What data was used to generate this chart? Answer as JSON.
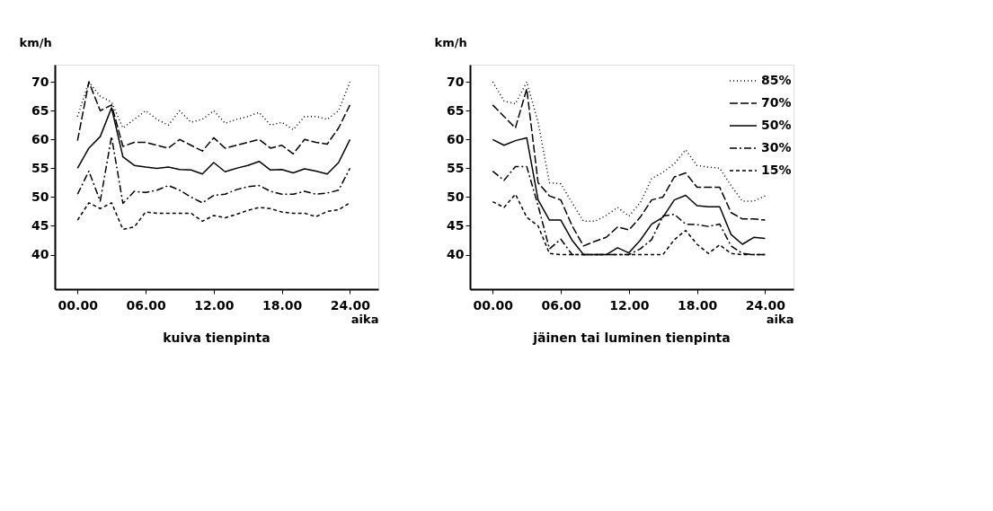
{
  "chart_data": [
    {
      "type": "line",
      "title": "kuiva tienpinta",
      "xlabel": "aika",
      "ylabel": "km/h",
      "x": [
        0,
        1,
        2,
        3,
        4,
        5,
        6,
        7,
        8,
        9,
        10,
        11,
        12,
        13,
        14,
        15,
        16,
        17,
        18,
        19,
        20,
        21,
        22,
        23,
        24
      ],
      "xlim": [
        -2,
        26.5
      ],
      "ylim": [
        34,
        73
      ],
      "xticks": [
        {
          "value": 0,
          "label": "00.00"
        },
        {
          "value": 6,
          "label": "06.00"
        },
        {
          "value": 12,
          "label": "12.00"
        },
        {
          "value": 18,
          "label": "18.00"
        },
        {
          "value": 24,
          "label": "24.00"
        }
      ],
      "yticks": [
        40,
        45,
        50,
        55,
        60,
        65,
        70
      ],
      "grid": false,
      "legend": false,
      "marker": "none",
      "series": [
        {
          "color": "#000000",
          "line_style": "dotted",
          "values": [
            64,
            70,
            67.5,
            66.5,
            62,
            63.5,
            65,
            63.5,
            62.5,
            65,
            63,
            63.5,
            65,
            62.8,
            63.5,
            64,
            64.7,
            62.5,
            63,
            61.7,
            64,
            64,
            63.5,
            65,
            70
          ]
        },
        {
          "color": "#000000",
          "line_style": "longdash",
          "values": [
            59.8,
            70,
            65,
            66,
            58.8,
            59.5,
            59.5,
            59,
            58.5,
            60,
            59,
            58,
            60.3,
            58.5,
            59,
            59.5,
            60,
            58.5,
            59,
            57.5,
            60,
            59.5,
            59.2,
            62,
            66
          ]
        },
        {
          "color": "#000000",
          "line_style": "solid",
          "values": [
            55,
            58.5,
            60.5,
            65.5,
            57,
            55.5,
            55.2,
            55,
            55.2,
            54.8,
            54.7,
            54,
            56,
            54.4,
            55,
            55.5,
            56.2,
            54.7,
            54.8,
            54.2,
            54.9,
            54.5,
            54,
            56,
            60
          ]
        },
        {
          "color": "#000000",
          "line_style": "dashdot",
          "values": [
            50.5,
            54.5,
            49.3,
            60.5,
            48.9,
            51,
            50.8,
            51.2,
            52,
            51.2,
            50,
            49,
            50.3,
            50.5,
            51.3,
            51.8,
            52,
            51,
            50.5,
            50.5,
            51,
            50.5,
            50.7,
            51.2,
            55
          ]
        },
        {
          "color": "#000000",
          "line_style": "dashed",
          "values": [
            46,
            49,
            48,
            49,
            44.4,
            44.8,
            47.4,
            47.2,
            47.2,
            47.2,
            47.2,
            45.8,
            46.8,
            46.4,
            47,
            47.7,
            48.2,
            48,
            47.4,
            47.2,
            47.2,
            46.6,
            47.5,
            47.8,
            49
          ]
        }
      ]
    },
    {
      "type": "line",
      "title": "jäinen tai luminen tienpinta",
      "xlabel": "aika",
      "ylabel": "km/h",
      "x": [
        0,
        1,
        2,
        3,
        4,
        5,
        6,
        7,
        8,
        9,
        10,
        11,
        12,
        13,
        14,
        15,
        16,
        17,
        18,
        19,
        20,
        21,
        22,
        23,
        24
      ],
      "xlim": [
        -2,
        26.5
      ],
      "ylim": [
        34,
        73
      ],
      "xticks": [
        {
          "value": 0,
          "label": "00.00"
        },
        {
          "value": 6,
          "label": "06.00"
        },
        {
          "value": 12,
          "label": "12.00"
        },
        {
          "value": 18,
          "label": "18.00"
        },
        {
          "value": 24,
          "label": "24.00"
        }
      ],
      "yticks": [
        40,
        45,
        50,
        55,
        60,
        65,
        70
      ],
      "grid": false,
      "legend": "top right",
      "marker": "none",
      "series": [
        {
          "name": "85%",
          "color": "#000000",
          "line_style": "dotted",
          "values": [
            70,
            66.7,
            66.2,
            70,
            63,
            52.5,
            52.3,
            49,
            45.8,
            45.8,
            46.8,
            48.2,
            46.7,
            49,
            53.2,
            54.3,
            55.8,
            58.2,
            55.5,
            55.2,
            55,
            52,
            49.3,
            49.3,
            50.2
          ]
        },
        {
          "name": "70%",
          "color": "#000000",
          "line_style": "longdash",
          "values": [
            66,
            64,
            62,
            68.8,
            52.5,
            50.2,
            49.5,
            45,
            41.5,
            42.3,
            43,
            44.8,
            44.3,
            46.5,
            49.5,
            50,
            53.5,
            54.2,
            51.7,
            51.7,
            51.7,
            47.3,
            46.2,
            46.2,
            46
          ]
        },
        {
          "name": "50%",
          "color": "#000000",
          "line_style": "solid",
          "values": [
            60,
            59,
            59.8,
            60.3,
            49.5,
            46,
            46,
            42.5,
            40,
            40,
            40,
            41.2,
            40.3,
            42.5,
            45.3,
            46.5,
            49.5,
            50.3,
            48.5,
            48.3,
            48.3,
            43.5,
            41.8,
            43,
            42.8
          ]
        },
        {
          "name": "30%",
          "color": "#000000",
          "line_style": "dashdot",
          "values": [
            54.5,
            52.9,
            55.3,
            55.3,
            48.5,
            41,
            42.7,
            40,
            40,
            40,
            40,
            40,
            40,
            41,
            42.6,
            46.7,
            47,
            45.3,
            45.2,
            44.9,
            45.3,
            41.5,
            40.2,
            40,
            40
          ]
        },
        {
          "name": "15%",
          "color": "#000000",
          "line_style": "dashed",
          "values": [
            49.2,
            48.2,
            50.5,
            46.5,
            45,
            40.2,
            40,
            40,
            40,
            40,
            40,
            40,
            40,
            40,
            40,
            40,
            42.6,
            44.2,
            41.8,
            40.2,
            41.7,
            40.2,
            40,
            40,
            40
          ]
        }
      ]
    }
  ]
}
